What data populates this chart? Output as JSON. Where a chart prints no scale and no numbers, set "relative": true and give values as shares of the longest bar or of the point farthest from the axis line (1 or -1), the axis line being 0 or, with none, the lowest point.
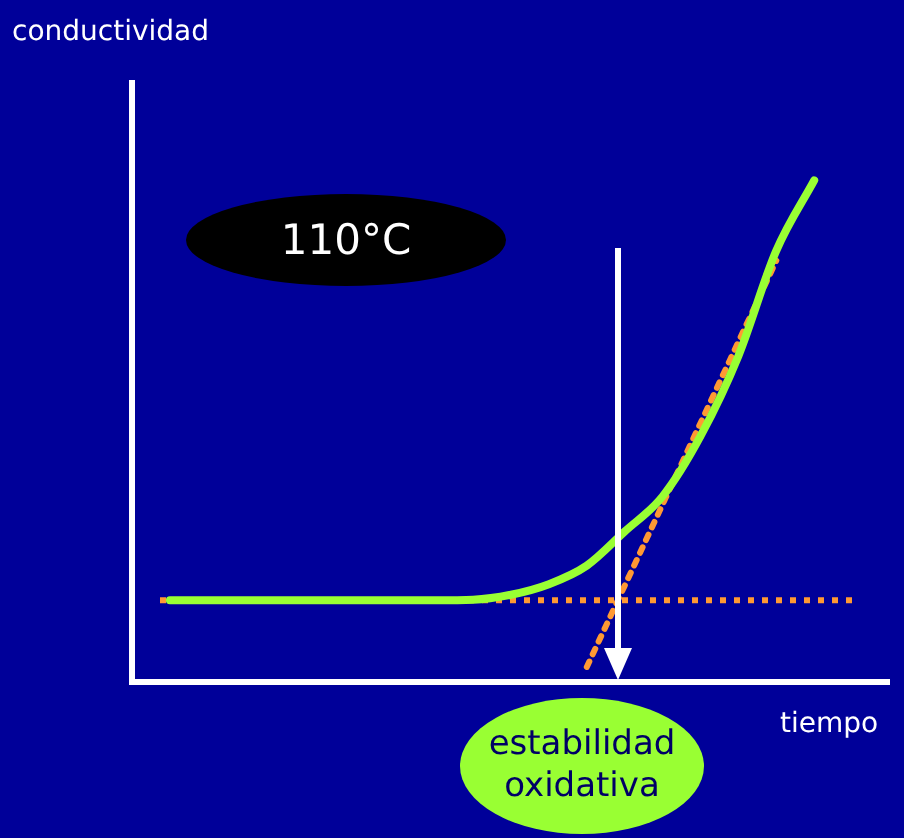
{
  "chart_data": {
    "type": "line",
    "relative": true,
    "xlabel": "tiempo",
    "ylabel": "conductividad",
    "annotations": [
      "110°C",
      "estabilidad oxidativa"
    ],
    "categories": [
      null,
      null,
      null,
      null,
      null,
      null,
      null,
      null,
      null,
      null,
      null,
      null,
      null,
      null,
      null,
      null,
      null,
      null,
      null,
      null,
      null
    ],
    "series": [
      {
        "color": "#99ff33",
        "line_style": "solid",
        "values": [
          null,
          0.163,
          0.163,
          0.163,
          0.163,
          0.163,
          0.163,
          0.163,
          0.163,
          0.164,
          0.174,
          0.195,
          0.232,
          0.3,
          0.37,
          0.49,
          0.65,
          0.86,
          1.0,
          null,
          null
        ]
      },
      {
        "color": "#ff9933",
        "line_style": "dotted",
        "values": [
          null,
          null,
          null,
          null,
          null,
          null,
          null,
          null,
          null,
          null,
          null,
          null,
          0.03,
          null,
          null,
          null,
          null,
          0.84,
          null,
          null,
          null
        ]
      }
    ],
    "ref_lines": [
      {
        "axis": "y",
        "value": 0.163,
        "color": "#ff9933",
        "line_style": "dotted"
      }
    ],
    "legend": false,
    "marker": "none"
  }
}
